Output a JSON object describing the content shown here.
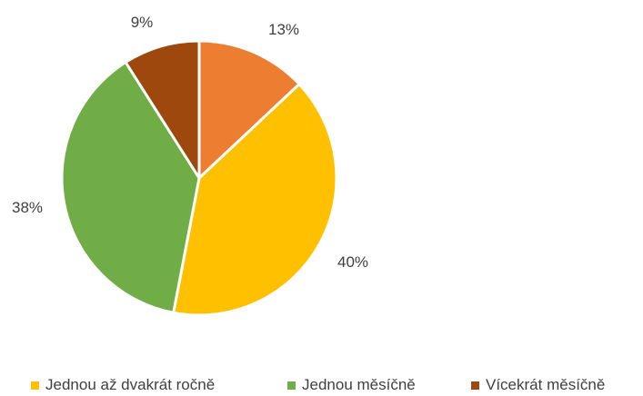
{
  "chart_data": {
    "type": "pie",
    "title": "",
    "categories": [
      "",
      "Jednou až dvakrát ročně",
      "Jednou měsíčně",
      "Vícekrát měsíčně"
    ],
    "values": [
      13,
      40,
      38,
      9
    ],
    "labels": [
      "13%",
      "40%",
      "38%",
      "9%"
    ],
    "colors": [
      "#ED7D31",
      "#FFC000",
      "#70AD47",
      "#9E480E"
    ],
    "start_angle_deg": 0,
    "direction": "clockwise",
    "legend_position": "bottom",
    "legend": [
      {
        "label": "Jednou až dvakrát ročně",
        "color": "#FFC000"
      },
      {
        "label": "Jednou měsíčně",
        "color": "#70AD47"
      },
      {
        "label": "Vícekrát měsíčně",
        "color": "#9E480E"
      }
    ]
  }
}
